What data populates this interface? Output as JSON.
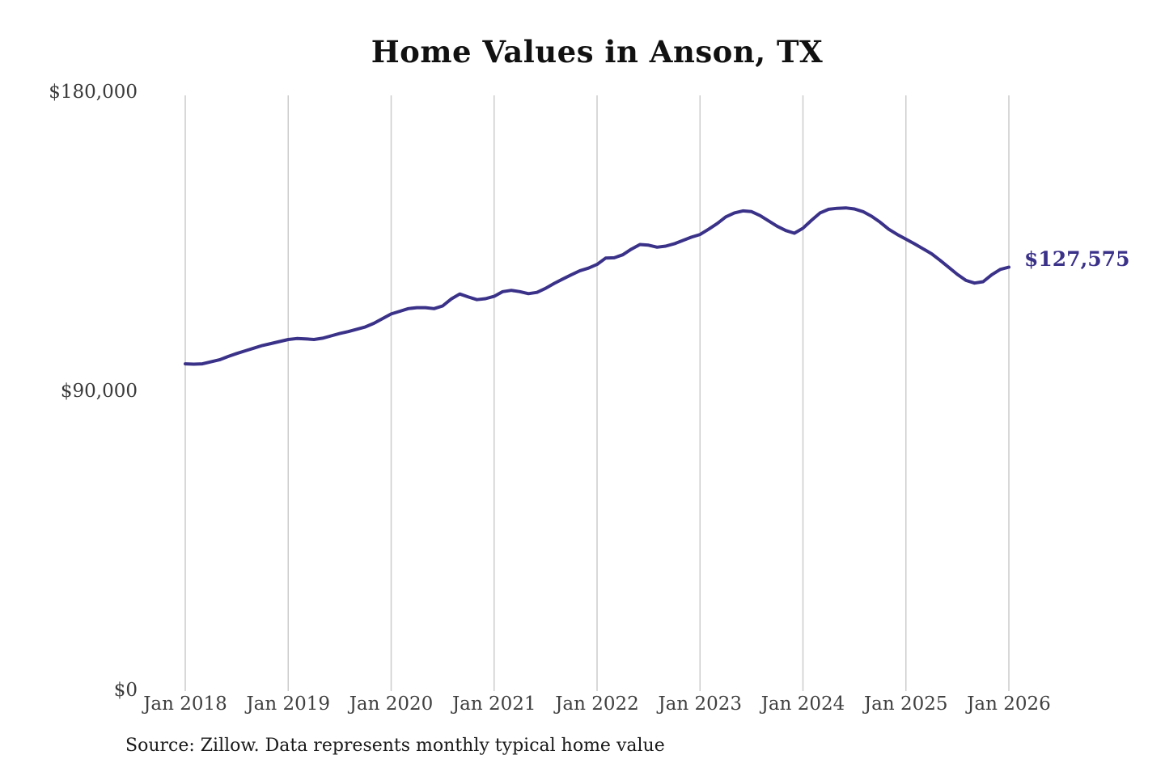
{
  "title": "Home Values in Anson, TX",
  "source_note": "Source: Zillow. Data represents monthly typical home value",
  "end_label": "$127,575",
  "colors": {
    "line": "#3a3189",
    "end_label": "#3a3189",
    "gridline": "#cccccc",
    "title": "#111111",
    "tick_text": "#404040"
  },
  "y_axis": {
    "ticks": [
      "$180,000",
      "$90,000",
      "$0"
    ]
  },
  "x_axis": {
    "ticks": [
      "Jan 2018",
      "Jan 2019",
      "Jan 2020",
      "Jan 2021",
      "Jan 2022",
      "Jan 2023",
      "Jan 2024",
      "Jan 2025",
      "Jan 2026"
    ]
  },
  "chart_data": {
    "type": "line",
    "title": "Home Values in Anson, TX",
    "series_name": "Monthly typical home value",
    "frequency": "monthly",
    "start_month": "2018-01",
    "end_month": "2026-01",
    "ylim": [
      0,
      180000
    ],
    "y_gridlines": false,
    "x_gridlines": true,
    "latest_value": 127575,
    "values": [
      98500,
      98400,
      98500,
      99100,
      99700,
      100700,
      101600,
      102400,
      103200,
      104000,
      104600,
      105200,
      105800,
      106100,
      106000,
      105800,
      106200,
      106900,
      107600,
      108200,
      108900,
      109600,
      110700,
      112100,
      113500,
      114300,
      115100,
      115400,
      115400,
      115100,
      115900,
      118000,
      119500,
      118600,
      117800,
      118100,
      118800,
      120200,
      120600,
      120200,
      119600,
      120000,
      121200,
      122700,
      124000,
      125300,
      126500,
      127300,
      128400,
      130300,
      130400,
      131300,
      133000,
      134400,
      134200,
      133600,
      133900,
      134600,
      135600,
      136600,
      137400,
      139000,
      140700,
      142700,
      143900,
      144500,
      144300,
      143100,
      141500,
      139900,
      138600,
      137800,
      139300,
      141700,
      143900,
      145000,
      145300,
      145400,
      145100,
      144300,
      142900,
      141100,
      139000,
      137400,
      136000,
      134600,
      133100,
      131600,
      129600,
      127500,
      125400,
      123600,
      122800,
      123200,
      125300,
      126900,
      127575
    ]
  }
}
